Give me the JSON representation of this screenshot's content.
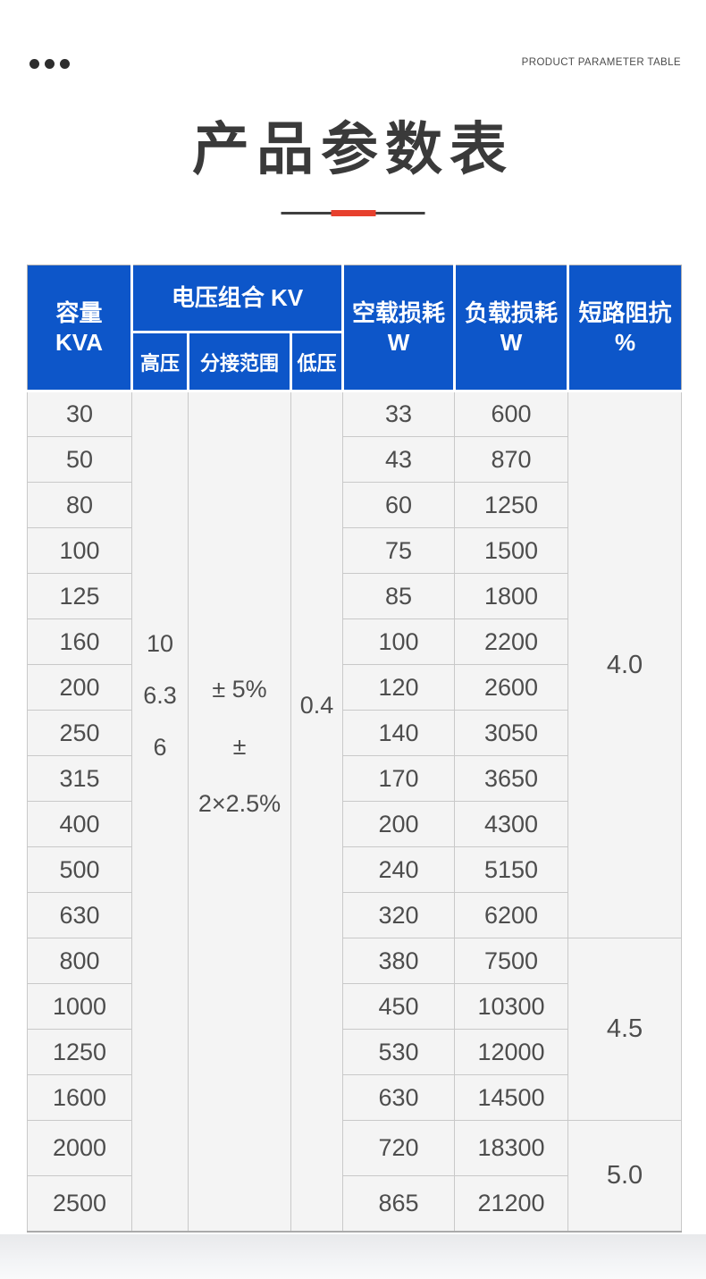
{
  "page": {
    "eyebrow": "PRODUCT PARAMETER TABLE",
    "title": "产品参数表"
  },
  "colors": {
    "header_blue": "#0d56c9",
    "accent_red": "#e7402d",
    "row_bg": "#f4f4f4"
  },
  "table": {
    "header": {
      "capacity_line1": "容量",
      "capacity_line2": "KVA",
      "voltage_combination": "电压组合 KV",
      "high_voltage": "高压",
      "tap_range": "分接范围",
      "low_voltage": "低压",
      "no_load_loss_line1": "空载损耗",
      "no_load_loss_line2": "W",
      "load_loss_line1": "负载损耗",
      "load_loss_line2": "W",
      "impedance_line1": "短路阻抗",
      "impedance_line2": "%"
    },
    "merged": {
      "high_voltage_values": [
        "10",
        "6.3",
        "6"
      ],
      "tap_range_values": [
        "± 5%",
        "± 2×2.5%"
      ],
      "low_voltage_values": [
        "0.4"
      ]
    },
    "rows": [
      {
        "kva": "30",
        "no_load": "33",
        "load": "600"
      },
      {
        "kva": "50",
        "no_load": "43",
        "load": "870"
      },
      {
        "kva": "80",
        "no_load": "60",
        "load": "1250"
      },
      {
        "kva": "100",
        "no_load": "75",
        "load": "1500"
      },
      {
        "kva": "125",
        "no_load": "85",
        "load": "1800"
      },
      {
        "kva": "160",
        "no_load": "100",
        "load": "2200"
      },
      {
        "kva": "200",
        "no_load": "120",
        "load": "2600"
      },
      {
        "kva": "250",
        "no_load": "140",
        "load": "3050"
      },
      {
        "kva": "315",
        "no_load": "170",
        "load": "3650"
      },
      {
        "kva": "400",
        "no_load": "200",
        "load": "4300"
      },
      {
        "kva": "500",
        "no_load": "240",
        "load": "5150"
      },
      {
        "kva": "630",
        "no_load": "320",
        "load": "6200"
      },
      {
        "kva": "800",
        "no_load": "380",
        "load": "7500"
      },
      {
        "kva": "1000",
        "no_load": "450",
        "load": "10300"
      },
      {
        "kva": "1250",
        "no_load": "530",
        "load": "12000"
      },
      {
        "kva": "1600",
        "no_load": "630",
        "load": "14500"
      },
      {
        "kva": "2000",
        "no_load": "720",
        "load": "18300"
      },
      {
        "kva": "2500",
        "no_load": "865",
        "load": "21200"
      }
    ],
    "impedance_groups": [
      {
        "value": "4.0",
        "rows": 12
      },
      {
        "value": "4.5",
        "rows": 4
      },
      {
        "value": "5.0",
        "rows": 2
      }
    ]
  }
}
